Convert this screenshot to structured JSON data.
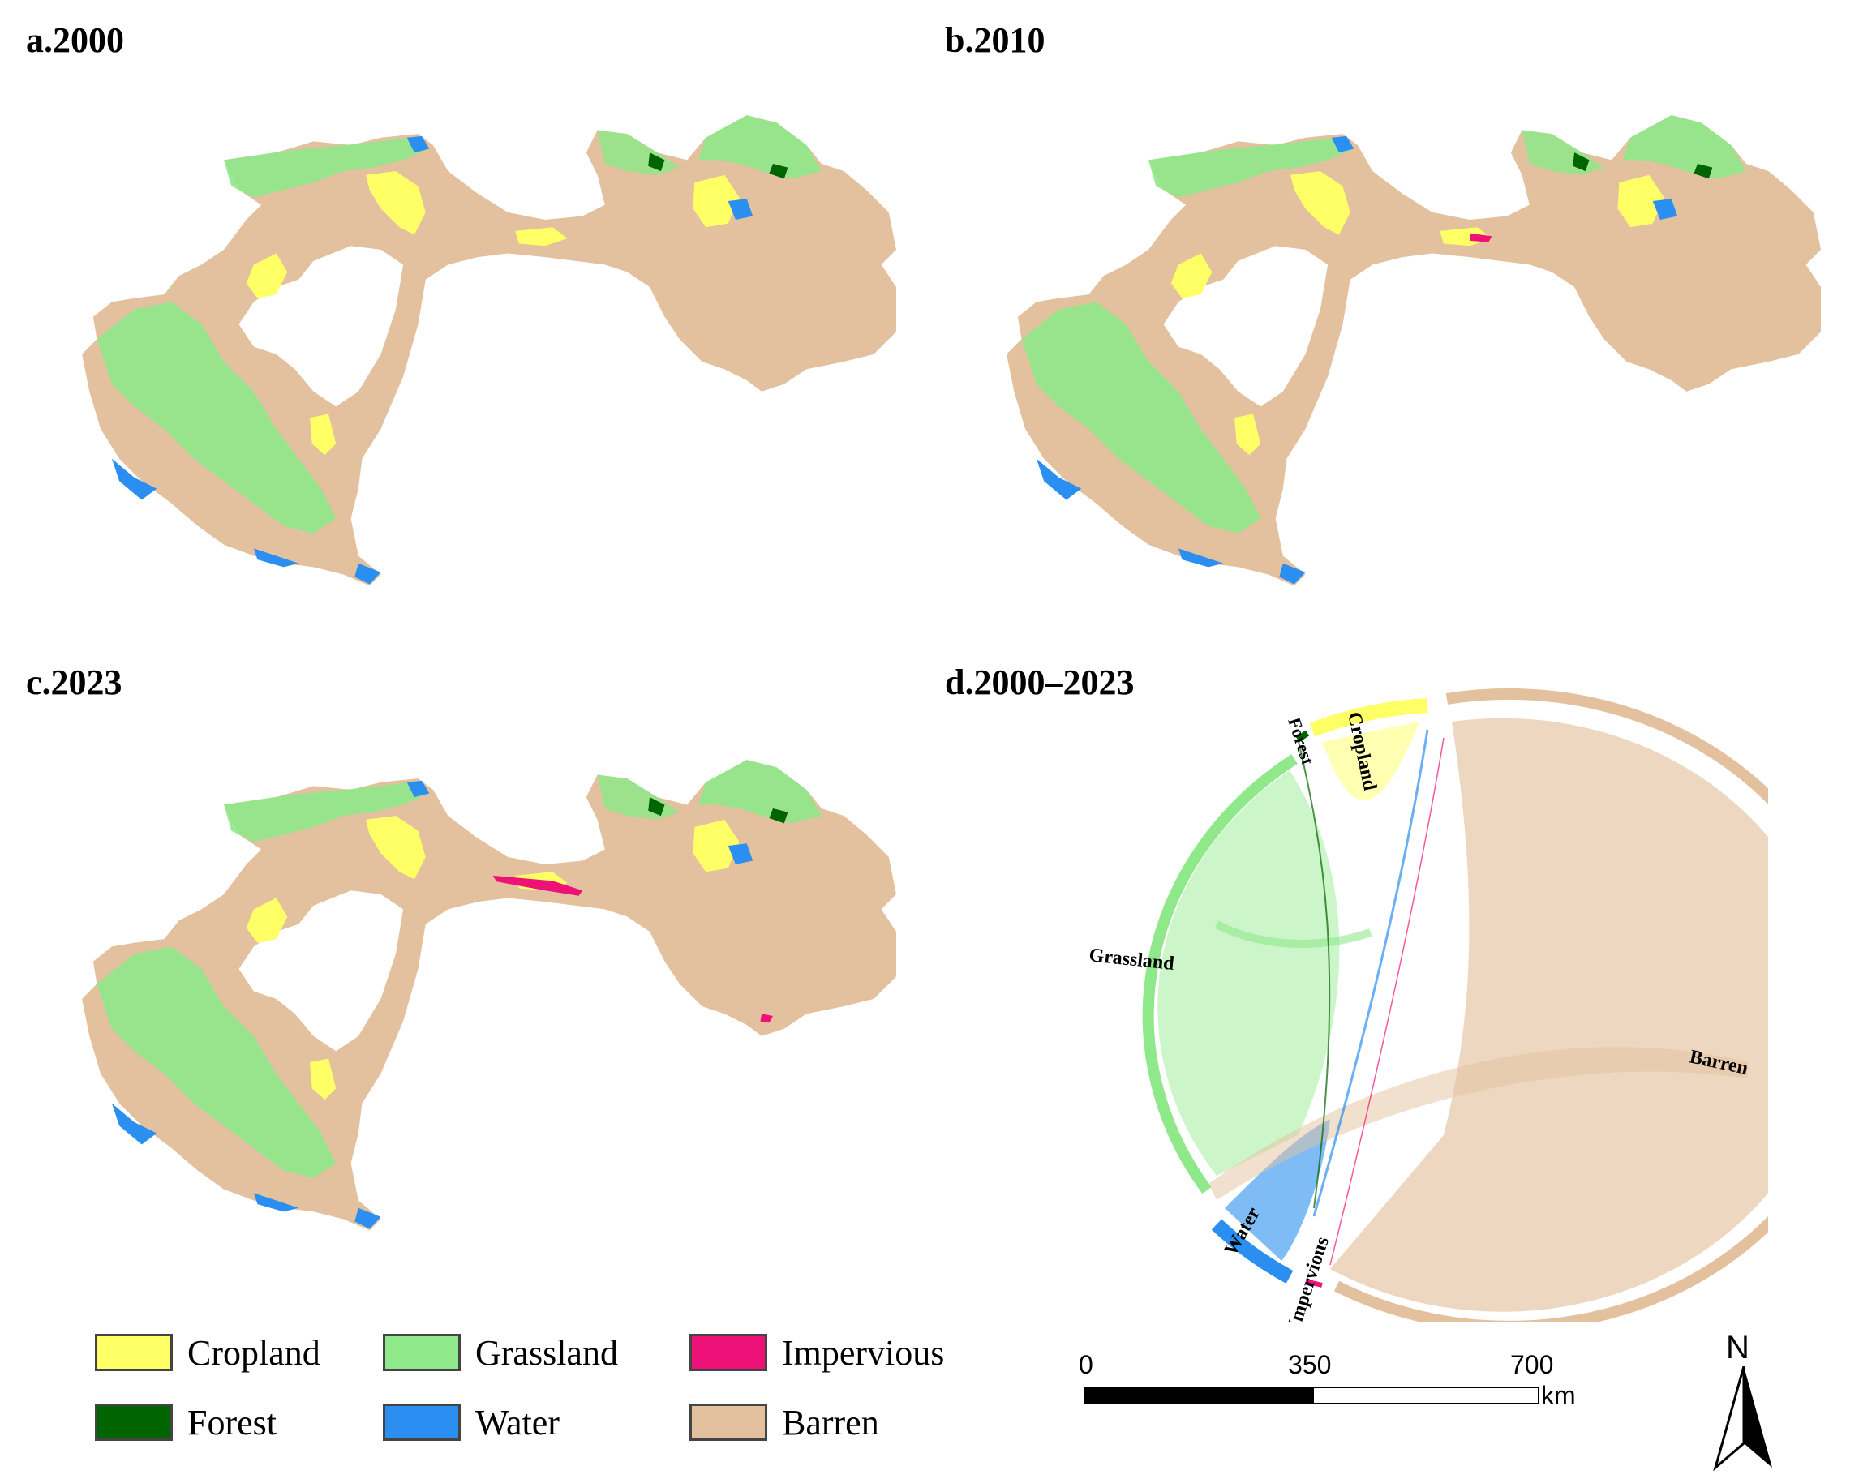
{
  "panels": {
    "a": {
      "title": "a.2000"
    },
    "b": {
      "title": "b.2010"
    },
    "c": {
      "title": "c.2023"
    },
    "d": {
      "title": "d.2000–2023"
    }
  },
  "chord": {
    "labels": {
      "cropland": "Cropland",
      "forest": "Forest",
      "grassland": "Grassland",
      "water": "Water",
      "impervious": "Impervious",
      "barren": "Barren"
    }
  },
  "legend": {
    "items": [
      {
        "key": "cropland",
        "label": "Cropland",
        "color": "#ffff66"
      },
      {
        "key": "grassland",
        "label": "Grassland",
        "color": "#8fe88a"
      },
      {
        "key": "impervious",
        "label": "Impervious",
        "color": "#ee1177"
      },
      {
        "key": "forest",
        "label": "Forest",
        "color": "#006400"
      },
      {
        "key": "water",
        "label": "Water",
        "color": "#2a8ff0"
      },
      {
        "key": "barren",
        "label": "Barren",
        "color": "#e3c19e"
      }
    ]
  },
  "scale": {
    "tick0": "0",
    "tick1": "350",
    "tick2": "700",
    "unit": "km"
  },
  "north": {
    "label": "N"
  },
  "colors": {
    "cropland": "#ffff66",
    "grassland": "#8fe88a",
    "impervious": "#ee1177",
    "forest": "#006400",
    "water": "#2a8ff0",
    "barren": "#e3c19e"
  }
}
